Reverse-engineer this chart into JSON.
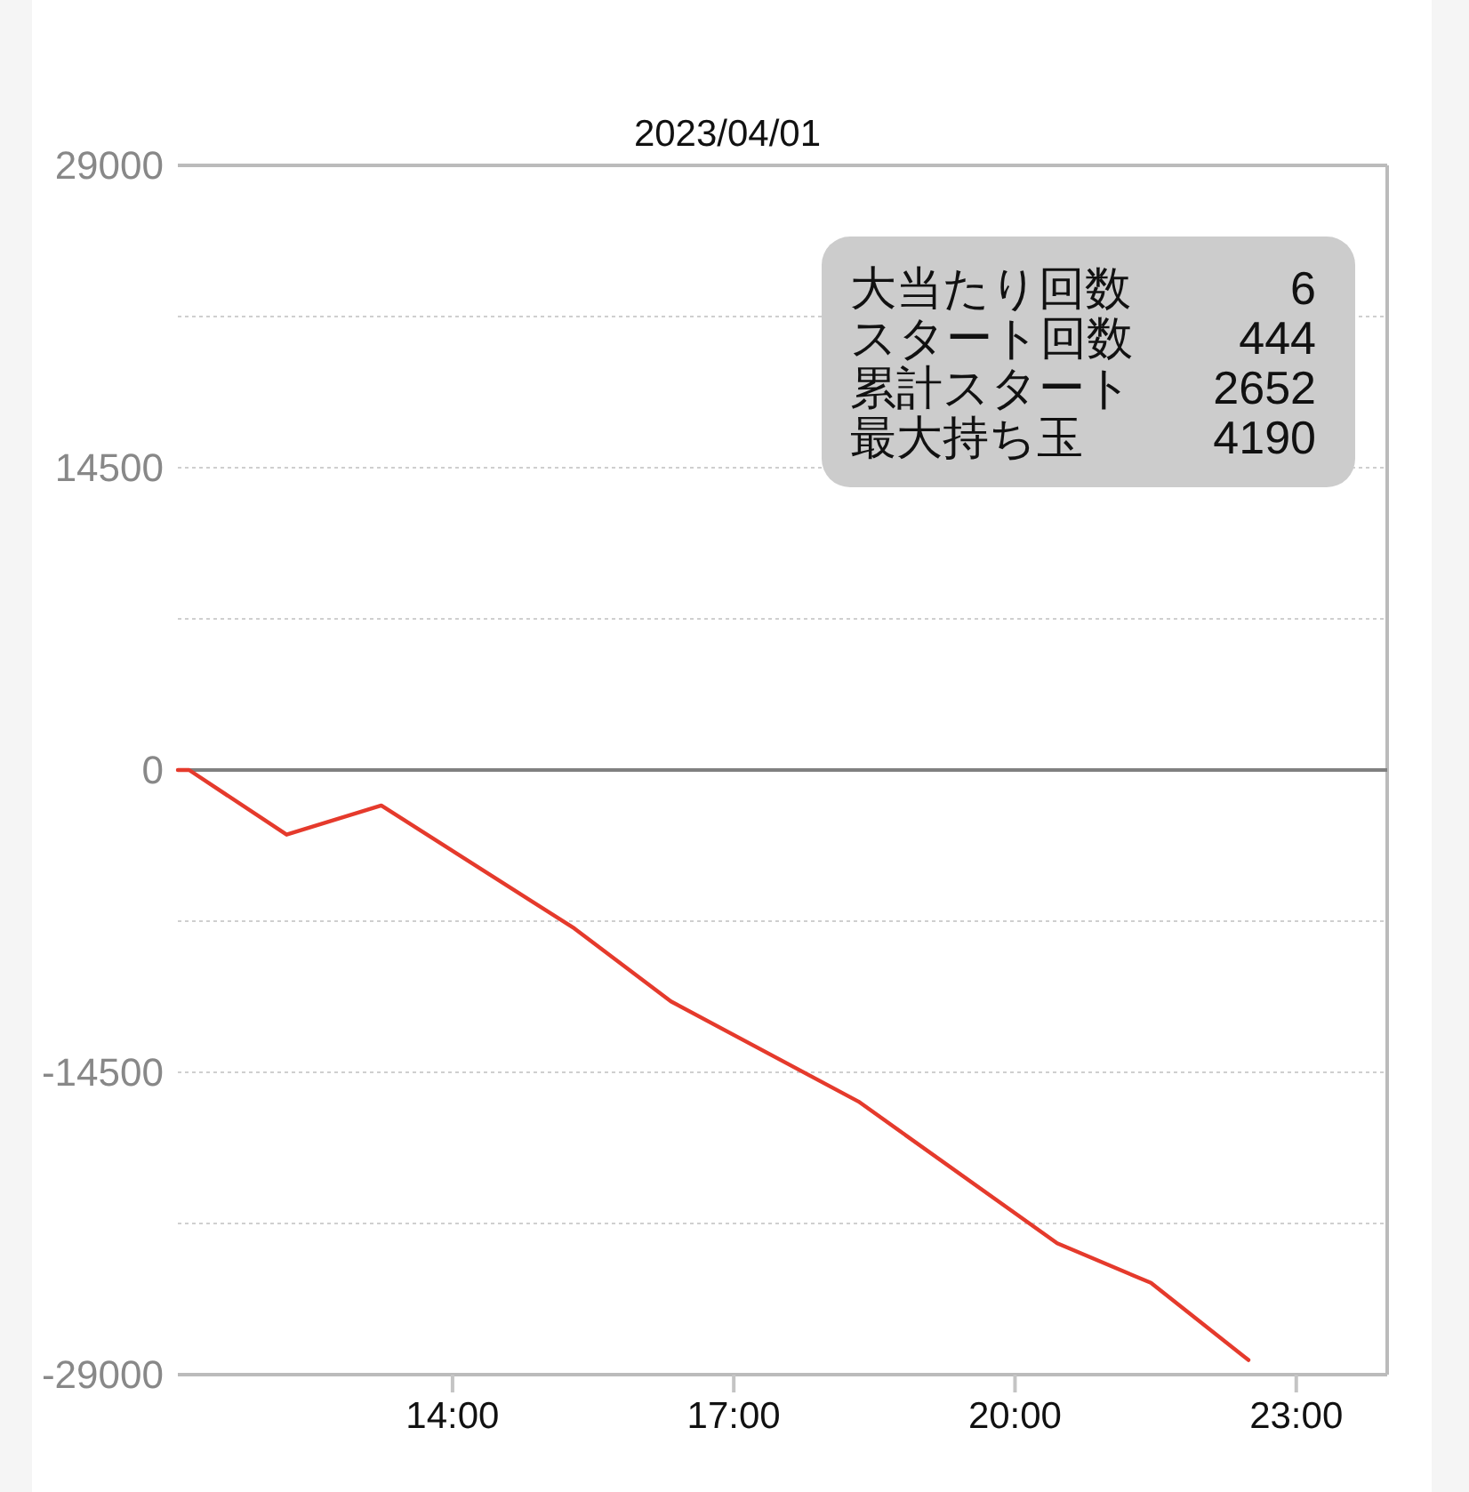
{
  "chart_data": {
    "type": "line",
    "title": "2023/04/01",
    "x": [
      11.07,
      11.19,
      12.23,
      13.24,
      15.3,
      16.33,
      18.33,
      20.45,
      21.45,
      22.49
    ],
    "series": [
      {
        "color": "#e53a2c",
        "values": [
          0,
          0,
          -3100,
          -1700,
          -7600,
          -11100,
          -15900,
          -22700,
          -24600,
          -28300
        ]
      }
    ],
    "xlim": [
      11.07,
      23.97
    ],
    "xticks": [
      {
        "value": 14,
        "label": "14:00"
      },
      {
        "value": 17,
        "label": "17:00"
      },
      {
        "value": 20,
        "label": "20:00"
      },
      {
        "value": 23,
        "label": "23:00"
      }
    ],
    "ylim": [
      -29000,
      29000
    ],
    "yticks": [
      -29000,
      {
        "value": -21750,
        "label": null
      },
      -14500,
      {
        "value": -7250,
        "label": null
      },
      0,
      {
        "value": 7250,
        "label": null
      },
      14500,
      {
        "value": 21750,
        "label": null
      },
      29000
    ],
    "ref_lines": [
      {
        "axis": "y",
        "value": 0,
        "color": "#808080",
        "line_style": "solid"
      }
    ],
    "grid": "y",
    "marker": "none",
    "line_style": "solid",
    "annotations": [
      "大当たり回数",
      "6",
      "スタート回数",
      "444",
      "累計スタート",
      "2652",
      "最大持ち玉",
      "4190"
    ]
  }
}
